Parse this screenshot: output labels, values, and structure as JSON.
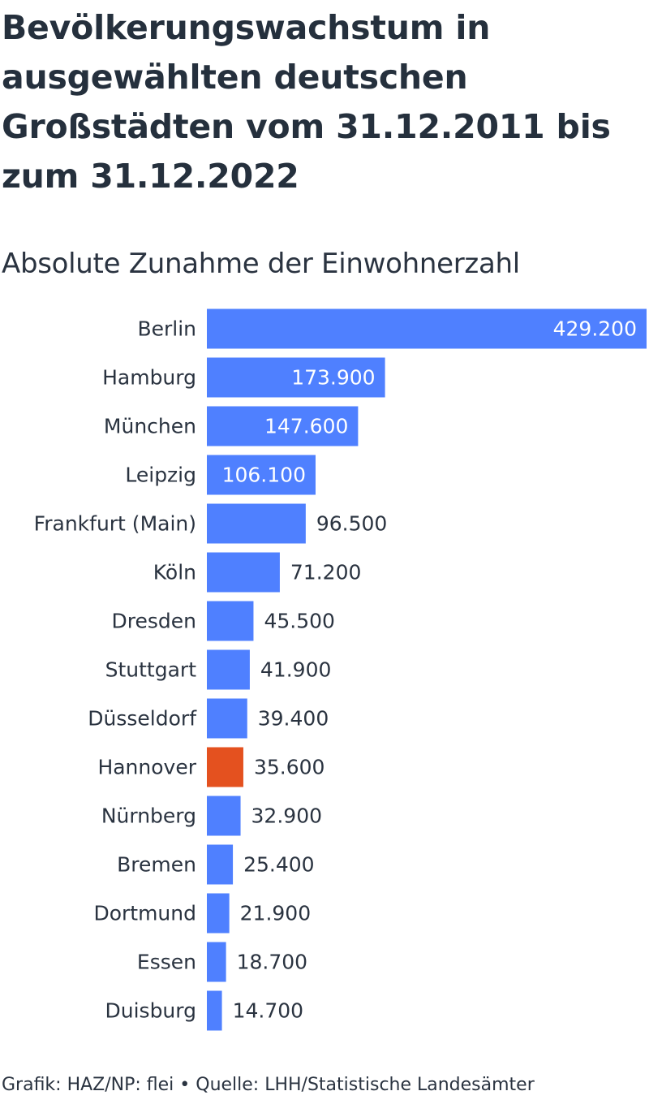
{
  "title": "Bevölkerungswachstum in ausgewählten deutschen Großstädten vom 31.12.2011 bis zum 31.12.2022",
  "subtitle": "Absolute Zunahme der Einwohnerzahl",
  "footer": "Grafik: HAZ/NP: flei • Quelle: LHH/Statistische Landesämter",
  "colors": {
    "bar": "#4f80ff",
    "highlight": "#e4511f",
    "label_inside": "#ffffff",
    "label_outside": "#2a3340",
    "category_text": "#2a3340"
  },
  "chart_data": {
    "type": "bar",
    "orientation": "horizontal",
    "title": "Bevölkerungswachstum in ausgewählten deutschen Großstädten vom 31.12.2011 bis zum 31.12.2022",
    "subtitle": "Absolute Zunahme der Einwohnerzahl",
    "categories": [
      "Berlin",
      "Hamburg",
      "München",
      "Leipzig",
      "Frankfurt (Main)",
      "Köln",
      "Dresden",
      "Stuttgart",
      "Düsseldorf",
      "Hannover",
      "Nürnberg",
      "Bremen",
      "Dortmund",
      "Essen",
      "Duisburg"
    ],
    "values": [
      429200,
      173900,
      147600,
      106100,
      96500,
      71200,
      45500,
      41900,
      39400,
      35600,
      32900,
      25400,
      21900,
      18700,
      14700
    ],
    "value_labels": [
      "429.200",
      "173.900",
      "147.600",
      "106.100",
      "96.500",
      "71.200",
      "45.500",
      "41.900",
      "39.400",
      "35.600",
      "32.900",
      "25.400",
      "21.900",
      "18.700",
      "14.700"
    ],
    "highlight": "Hannover",
    "xlim": [
      0,
      429200
    ],
    "grid": false,
    "legend": "none"
  }
}
